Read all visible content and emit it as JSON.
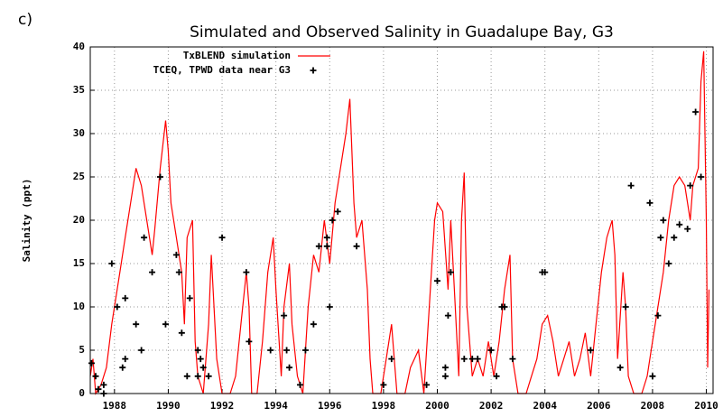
{
  "chart_data": {
    "type": "line",
    "panel_label": "c)",
    "title": "Simulated and Observed Salinity in Guadalupe Bay, G3",
    "ylabel": "Salinity (ppt)",
    "xlim": [
      1987.1,
      2010.25
    ],
    "ylim": [
      0,
      40
    ],
    "xticks": [
      1988,
      1990,
      1992,
      1994,
      1996,
      1998,
      2000,
      2002,
      2004,
      2006,
      2008,
      2010
    ],
    "yticks": [
      0,
      5,
      10,
      15,
      20,
      25,
      30,
      35,
      40
    ],
    "grid": true,
    "legend": "upper left",
    "series": [
      {
        "name": "TxBLEND simulation",
        "color": "#ff0000",
        "type": "line",
        "x": [
          1987.1,
          1987.2,
          1987.3,
          1987.5,
          1987.7,
          1987.9,
          1988.0,
          1988.2,
          1988.4,
          1988.6,
          1988.8,
          1989.0,
          1989.2,
          1989.4,
          1989.5,
          1989.7,
          1989.9,
          1990.0,
          1990.1,
          1990.3,
          1990.5,
          1990.6,
          1990.7,
          1990.9,
          1991.0,
          1991.1,
          1991.3,
          1991.5,
          1991.6,
          1991.8,
          1992.0,
          1992.3,
          1992.5,
          1992.7,
          1992.9,
          1993.0,
          1993.1,
          1993.3,
          1993.5,
          1993.7,
          1993.9,
          1994.0,
          1994.2,
          1994.3,
          1994.5,
          1994.6,
          1994.8,
          1995.0,
          1995.2,
          1995.4,
          1995.6,
          1995.8,
          1996.0,
          1996.2,
          1996.4,
          1996.6,
          1996.75,
          1996.9,
          1997.0,
          1997.2,
          1997.4,
          1997.5,
          1997.6,
          1997.9,
          1998.1,
          1998.3,
          1998.5,
          1998.8,
          1999.0,
          1999.3,
          1999.5,
          1999.7,
          1999.9,
          2000.0,
          2000.2,
          2000.4,
          2000.5,
          2000.6,
          2000.8,
          2000.9,
          2001.0,
          2001.1,
          2001.3,
          2001.5,
          2001.7,
          2001.9,
          2002.1,
          2002.3,
          2002.5,
          2002.7,
          2002.8,
          2003.0,
          2003.3,
          2003.5,
          2003.7,
          2003.9,
          2004.1,
          2004.3,
          2004.5,
          2004.7,
          2004.9,
          2005.1,
          2005.3,
          2005.5,
          2005.7,
          2005.9,
          2006.1,
          2006.3,
          2006.5,
          2006.6,
          2006.7,
          2006.9,
          2007.0,
          2007.1,
          2007.3,
          2007.6,
          2007.8,
          2008.0,
          2008.2,
          2008.4,
          2008.6,
          2008.8,
          2009.0,
          2009.2,
          2009.4,
          2009.5,
          2009.7,
          2009.8,
          2009.9,
          2010.0,
          2010.05,
          2010.1
        ],
        "values": [
          2,
          4,
          0,
          1,
          3,
          8,
          10,
          14,
          18,
          22,
          26,
          24,
          20,
          16,
          19,
          26,
          31.5,
          28,
          22,
          18,
          14,
          8,
          18,
          20,
          6,
          2,
          0,
          8,
          16,
          4,
          0,
          0,
          2,
          8,
          14,
          10,
          0,
          0,
          6,
          14,
          18,
          12,
          2,
          10,
          15,
          8,
          2,
          0,
          10,
          16,
          14,
          20,
          15,
          22,
          26,
          30,
          34,
          22,
          18,
          20,
          12,
          4,
          0,
          0,
          4,
          8,
          0,
          0,
          3,
          5,
          0,
          10,
          20,
          22,
          21,
          12,
          20,
          14,
          2,
          20,
          25.5,
          10,
          2,
          4,
          2,
          6,
          2,
          6,
          12,
          16,
          4,
          0,
          0,
          2,
          4,
          8,
          9,
          6,
          2,
          4,
          6,
          2,
          4,
          7,
          2,
          8,
          14,
          18,
          20,
          16,
          4,
          14,
          10,
          2,
          0,
          0,
          2,
          6,
          10,
          14,
          20,
          24,
          25,
          24,
          20,
          24,
          26,
          36,
          39.5,
          20,
          3,
          12
        ]
      },
      {
        "name": "TCEQ, TPWD data near G3",
        "color": "#000000",
        "type": "scatter",
        "x": [
          1987.15,
          1987.3,
          1987.4,
          1987.6,
          1987.6,
          1987.9,
          1988.1,
          1988.3,
          1988.4,
          1988.4,
          1988.8,
          1989.0,
          1989.1,
          1989.4,
          1989.7,
          1989.9,
          1990.3,
          1990.4,
          1990.5,
          1990.7,
          1990.8,
          1991.1,
          1991.2,
          1991.3,
          1991.1,
          1991.5,
          1992.0,
          1992.9,
          1993.0,
          1993.8,
          1994.3,
          1994.4,
          1994.5,
          1994.9,
          1995.1,
          1995.4,
          1995.6,
          1995.9,
          1995.9,
          1996.0,
          1996.1,
          1996.3,
          1997.0,
          1998.0,
          1998.3,
          1999.6,
          2000.0,
          2000.3,
          2000.3,
          2000.4,
          2000.5,
          2001.0,
          2001.3,
          2001.5,
          2002.0,
          2002.2,
          2002.4,
          2002.5,
          2002.8,
          2003.9,
          2004.0,
          2005.7,
          2006.8,
          2007.0,
          2007.2,
          2007.9,
          2008.0,
          2008.2,
          2008.3,
          2008.4,
          2008.6,
          2008.8,
          2009.0,
          2009.3,
          2009.4,
          2009.6,
          2009.8
        ],
        "values": [
          3.5,
          2,
          0.5,
          1,
          0,
          15,
          10,
          3,
          4,
          11,
          8,
          5,
          18,
          14,
          25,
          8,
          16,
          14,
          7,
          2,
          11,
          5,
          4,
          3,
          2,
          2,
          18,
          14,
          6,
          5,
          9,
          5,
          3,
          1,
          5,
          8,
          17,
          18,
          17,
          10,
          20,
          21,
          17,
          1,
          4,
          1,
          13,
          3,
          2,
          9,
          14,
          4,
          4,
          4,
          5,
          2,
          10,
          10,
          4,
          14,
          14,
          5,
          3,
          10,
          24,
          22,
          2,
          9,
          18,
          20,
          15,
          18,
          19.5,
          19,
          24,
          32.5,
          25
        ]
      }
    ]
  }
}
